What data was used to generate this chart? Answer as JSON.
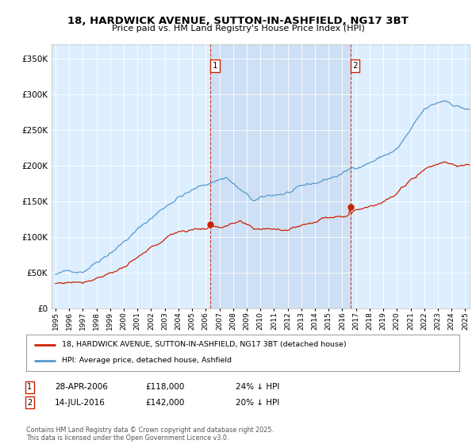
{
  "title_line1": "18, HARDWICK AVENUE, SUTTON-IN-ASHFIELD, NG17 3BT",
  "title_line2": "Price paid vs. HM Land Registry's House Price Index (HPI)",
  "ylim": [
    0,
    370000
  ],
  "yticks": [
    0,
    50000,
    100000,
    150000,
    200000,
    250000,
    300000,
    350000
  ],
  "plot_bg_color": "#ddeeff",
  "hpi_color": "#5599cc",
  "price_color": "#cc2200",
  "shade_color": "#c5d8ef",
  "marker1_t": 2006.333,
  "marker1_price": 118000,
  "marker2_t": 2016.583,
  "marker2_price": 142000,
  "legend_line1": "18, HARDWICK AVENUE, SUTTON-IN-ASHFIELD, NG17 3BT (detached house)",
  "legend_line2": "HPI: Average price, detached house, Ashfield",
  "ann1_date": "28-APR-2006",
  "ann1_price": "£118,000",
  "ann1_pct": "24% ↓ HPI",
  "ann2_date": "14-JUL-2016",
  "ann2_price": "£142,000",
  "ann2_pct": "20% ↓ HPI",
  "footer": "Contains HM Land Registry data © Crown copyright and database right 2025.\nThis data is licensed under the Open Government Licence v3.0.",
  "x_start_year": 1995,
  "x_end_year": 2025
}
